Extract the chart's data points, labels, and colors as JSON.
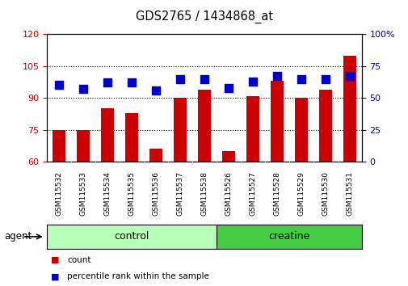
{
  "title": "GDS2765 / 1434868_at",
  "categories": [
    "GSM115532",
    "GSM115533",
    "GSM115534",
    "GSM115535",
    "GSM115536",
    "GSM115537",
    "GSM115538",
    "GSM115526",
    "GSM115527",
    "GSM115528",
    "GSM115529",
    "GSM115530",
    "GSM115531"
  ],
  "count_values": [
    75,
    75,
    85,
    83,
    66,
    90,
    94,
    65,
    91,
    98,
    90,
    94,
    110
  ],
  "percentile_values": [
    60,
    57,
    62,
    62,
    56,
    65,
    65,
    58,
    63,
    67,
    65,
    65,
    67
  ],
  "ylim_left": [
    60,
    120
  ],
  "ylim_right": [
    0,
    100
  ],
  "yticks_left": [
    60,
    75,
    90,
    105,
    120
  ],
  "yticks_right": [
    0,
    25,
    50,
    75,
    100
  ],
  "bar_color": "#CC0000",
  "dot_color": "#0000CC",
  "tick_area_bg": "#c8c8c8",
  "control_bg_light": "#b8ffb8",
  "creatine_bg": "#44cc44",
  "control_label": "control",
  "creatine_label": "creatine",
  "agent_label": "agent",
  "legend_count": "count",
  "legend_pct": "percentile rank within the sample",
  "n_control": 7,
  "n_creatine": 6,
  "bar_width": 0.55,
  "dot_size": 50,
  "grid_yticks": [
    75,
    90,
    105
  ]
}
